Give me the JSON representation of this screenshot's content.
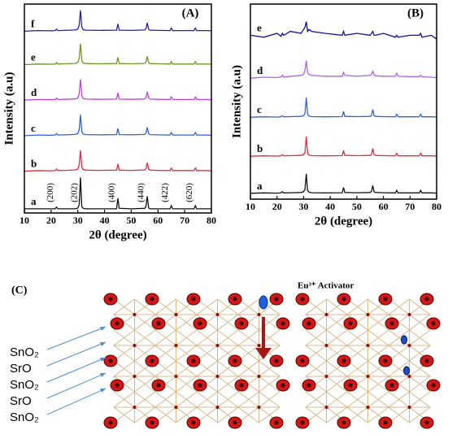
{
  "chart_data": [
    {
      "type": "line",
      "title": "(A)",
      "x_label": "2θ (degree)",
      "y_label": "Intensity (a.u)",
      "xlim": [
        10,
        80
      ],
      "xticks": [
        10,
        20,
        30,
        40,
        50,
        60,
        70,
        80
      ],
      "ylim": [
        0,
        100
      ],
      "x": [
        10,
        15,
        20,
        21.5,
        22,
        22.5,
        25,
        29,
        30,
        30.5,
        31,
        31.5,
        32,
        33,
        38,
        44.5,
        45,
        45.5,
        50,
        55,
        55.5,
        56,
        56.5,
        57,
        60,
        64.5,
        65,
        65.5,
        70,
        73.5,
        74,
        74.5,
        78,
        80
      ],
      "series": [
        {
          "name": "a",
          "color": "#111111",
          "values": [
            2,
            2,
            2,
            2,
            2.8,
            2,
            2,
            2,
            2.3,
            4,
            17,
            3,
            2.2,
            2,
            2,
            2,
            7,
            2.2,
            2,
            2.2,
            3,
            8,
            2.5,
            2,
            2,
            2,
            3.5,
            2,
            2,
            2,
            3.5,
            2,
            2,
            2
          ]
        },
        {
          "name": "b",
          "color": "#e8283c",
          "values": [
            20,
            20.3,
            20.2,
            20.3,
            21,
            20.3,
            20.4,
            20.6,
            21,
            23,
            30,
            22,
            20.8,
            20.5,
            20.4,
            20.5,
            23.5,
            20.5,
            20.4,
            20.6,
            21.2,
            24,
            21,
            20.5,
            20.4,
            20.3,
            21.5,
            20.3,
            20.3,
            20.3,
            21.5,
            20.3,
            20.3,
            20.2
          ]
        },
        {
          "name": "c",
          "color": "#3060e0",
          "values": [
            37,
            37.3,
            37.2,
            37.3,
            38,
            37.3,
            37.4,
            37.6,
            38,
            40,
            47,
            39,
            37.8,
            37.5,
            37.4,
            37.5,
            40.5,
            37.5,
            37.4,
            37.6,
            38.2,
            41,
            38,
            37.5,
            37.4,
            37.3,
            38.5,
            37.3,
            37.3,
            37.3,
            38.5,
            37.3,
            37.3,
            37.2
          ]
        },
        {
          "name": "d",
          "color": "#c040e0",
          "values": [
            54,
            54.3,
            54.2,
            54.3,
            55,
            54.3,
            54.4,
            54.6,
            55,
            57,
            64,
            56,
            54.8,
            54.5,
            54.4,
            54.5,
            57.5,
            54.5,
            54.4,
            54.6,
            55.2,
            58,
            55,
            54.5,
            54.4,
            54.3,
            55.5,
            54.3,
            54.3,
            54.3,
            55.5,
            54.3,
            54.3,
            54.2
          ]
        },
        {
          "name": "e",
          "color": "#6a9a20",
          "values": [
            71,
            71.3,
            71.2,
            71.3,
            72,
            71.3,
            71.4,
            71.6,
            72,
            74,
            81,
            73,
            71.8,
            71.5,
            71.4,
            71.5,
            74.5,
            71.5,
            71.4,
            71.6,
            72.2,
            75,
            72,
            71.5,
            71.4,
            71.3,
            72.5,
            71.3,
            71.3,
            71.3,
            72.5,
            71.3,
            71.3,
            71.2
          ]
        },
        {
          "name": "f",
          "color": "#2020b0",
          "values": [
            87,
            87.3,
            87.2,
            87.3,
            88,
            87.3,
            87.4,
            87.6,
            88,
            90,
            97,
            89,
            87.8,
            87.5,
            87.4,
            87.5,
            90.5,
            87.5,
            87.4,
            87.6,
            88.2,
            91,
            88,
            87.5,
            87.4,
            87.3,
            88.5,
            87.3,
            87.3,
            87.3,
            88.5,
            87.3,
            87.3,
            87.2
          ]
        }
      ],
      "annotations": [
        {
          "text": "(200)",
          "x": 22
        },
        {
          "text": "(202)",
          "x": 31
        },
        {
          "text": "(400)",
          "x": 45
        },
        {
          "text": "(440)",
          "x": 56
        },
        {
          "text": "(422)",
          "x": 65
        },
        {
          "text": "(620)",
          "x": 74
        }
      ]
    },
    {
      "type": "line",
      "title": "(B)",
      "x_label": "2θ (degree)",
      "y_label": "Intensity (a.u)",
      "xlim": [
        10,
        80
      ],
      "xticks": [
        10,
        20,
        30,
        40,
        50,
        60,
        70,
        80
      ],
      "ylim": [
        0,
        100
      ],
      "x": [
        10,
        15,
        20,
        21.5,
        22,
        22.5,
        25,
        29,
        30,
        30.5,
        31,
        31.5,
        32,
        33,
        38,
        44.5,
        45,
        45.5,
        50,
        55,
        55.5,
        56,
        56.5,
        57,
        60,
        64.5,
        65,
        65.5,
        70,
        73.5,
        74,
        74.5,
        78,
        80
      ],
      "series": [
        {
          "name": "a",
          "color": "#111111",
          "values": [
            3,
            3.2,
            3.1,
            3.2,
            3.8,
            3.2,
            3.3,
            3.4,
            3.8,
            5,
            13,
            4.5,
            3.6,
            3.3,
            3.2,
            3.3,
            6,
            3.4,
            3.3,
            3.4,
            4,
            7,
            3.8,
            3.4,
            3.3,
            3.2,
            4.5,
            3.2,
            3.2,
            3.2,
            4.5,
            3.2,
            3.2,
            3.1
          ]
        },
        {
          "name": "b",
          "color": "#e8283c",
          "values": [
            22,
            22.2,
            22.1,
            22.2,
            22.8,
            22.2,
            22.3,
            22.4,
            22.8,
            24,
            32,
            23.5,
            22.6,
            22.3,
            22.2,
            22.3,
            25,
            22.4,
            22.3,
            22.4,
            23,
            26,
            22.8,
            22.4,
            22.3,
            22.2,
            23.5,
            22.2,
            22.2,
            22.2,
            23.5,
            22.2,
            22.2,
            22.1
          ]
        },
        {
          "name": "c",
          "color": "#3060e0",
          "values": [
            42,
            42.2,
            42.1,
            42.2,
            42.8,
            42.2,
            42.3,
            42.4,
            42.8,
            44,
            52,
            43.5,
            42.6,
            42.3,
            42.2,
            42.3,
            45,
            42.4,
            42.3,
            42.4,
            43,
            46,
            42.8,
            42.4,
            42.3,
            42.2,
            43.5,
            42.2,
            42.2,
            42.2,
            43.5,
            42.2,
            42.2,
            42.1
          ]
        },
        {
          "name": "d",
          "color": "#b060f0",
          "values": [
            62,
            62.5,
            62.3,
            62.6,
            63.5,
            62.6,
            63,
            63.4,
            64,
            66,
            71,
            65,
            64,
            63.5,
            63,
            63,
            65,
            63.4,
            63,
            63.4,
            64,
            65.5,
            63.6,
            63.2,
            63,
            63,
            64.5,
            63,
            62.8,
            62.8,
            63.5,
            62.7,
            62.5,
            62.3
          ]
        },
        {
          "name": "e",
          "color": "#1010a0",
          "values": [
            84,
            83,
            85,
            83.5,
            85,
            84,
            86,
            85,
            87,
            88,
            91,
            86,
            87,
            86,
            85,
            84,
            86,
            84,
            85,
            84,
            85,
            86,
            84,
            84,
            85,
            83,
            84,
            83,
            84,
            84,
            85,
            83,
            84,
            82
          ]
        }
      ]
    }
  ],
  "diagram": {
    "label": "(C)",
    "activator": "Eu³⁺ Activator",
    "layers": [
      "SnO₂",
      "SrO",
      "SnO₂",
      "SrO",
      "SnO₂"
    ]
  }
}
